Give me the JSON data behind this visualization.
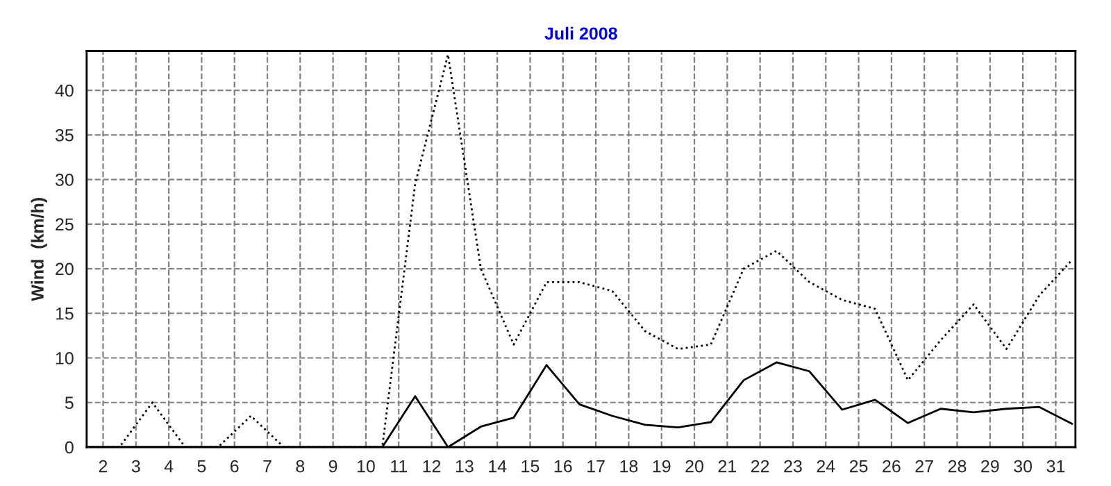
{
  "chart_data": {
    "type": "line",
    "title": "Juli 2008",
    "ylabel": "Wind  (km/h)",
    "x": [
      1.5,
      2.5,
      3.5,
      4.5,
      5.5,
      6.5,
      7.5,
      8.5,
      9.5,
      10.5,
      11.5,
      12.5,
      13.5,
      14.5,
      15.5,
      16.5,
      17.5,
      18.5,
      19.5,
      20.5,
      21.5,
      22.5,
      23.5,
      24.5,
      25.5,
      26.5,
      27.5,
      28.5,
      29.5,
      30.5,
      31.5
    ],
    "series": [
      {
        "color": "#000000",
        "line_style": "dotted",
        "values": [
          0,
          0,
          5,
          0,
          0,
          3.5,
          0,
          0,
          0,
          0,
          29.5,
          44,
          20,
          11.5,
          18.5,
          18.5,
          17.5,
          13,
          11,
          11.5,
          20,
          22,
          18.5,
          16.5,
          15.5,
          7.5,
          12,
          16,
          11,
          17,
          21
        ]
      },
      {
        "color": "#000000",
        "line_style": "solid",
        "values": [
          0,
          0,
          0,
          0,
          0,
          0,
          0,
          0,
          0,
          0,
          5.7,
          0,
          2.3,
          3.3,
          9.2,
          4.8,
          3.5,
          2.5,
          2.2,
          2.8,
          7.5,
          9.5,
          8.5,
          4.2,
          5.3,
          2.7,
          4.3,
          3.9,
          4.3,
          4.5,
          2.6
        ]
      }
    ],
    "xlim": [
      1.5,
      31.6
    ],
    "xticks": [
      2,
      3,
      4,
      5,
      6,
      7,
      8,
      9,
      10,
      11,
      12,
      13,
      14,
      15,
      16,
      17,
      18,
      19,
      20,
      21,
      22,
      23,
      24,
      25,
      26,
      27,
      28,
      29,
      30,
      31
    ],
    "ylim": [
      0,
      44.4
    ],
    "yticks": [
      0,
      5,
      10,
      15,
      20,
      25,
      30,
      35,
      40
    ],
    "grid": true
  }
}
